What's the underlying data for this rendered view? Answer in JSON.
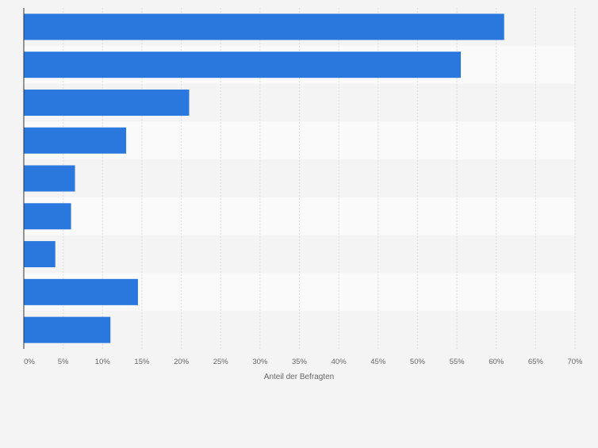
{
  "chart_data": {
    "type": "bar",
    "orientation": "horizontal",
    "categories": [
      "",
      "",
      "",
      "",
      "",
      "",
      "",
      "",
      ""
    ],
    "values": [
      61,
      55.5,
      21,
      13,
      6.5,
      6,
      4,
      14.5,
      11
    ],
    "xlabel": "Anteil der Befragten",
    "ylabel": "",
    "xlim": [
      0,
      70
    ],
    "xticks": [
      0,
      5,
      10,
      15,
      20,
      25,
      30,
      35,
      40,
      45,
      50,
      55,
      60,
      65,
      70
    ],
    "tick_suffix": "%",
    "grid": true,
    "legend": "none",
    "colors": {
      "bar": "#2a77dd",
      "band_light": "#fafafa",
      "band_dark": "#f4f4f4",
      "grid": "#dcdcdc",
      "axis": "#333333",
      "tick_text": "#666666"
    }
  }
}
